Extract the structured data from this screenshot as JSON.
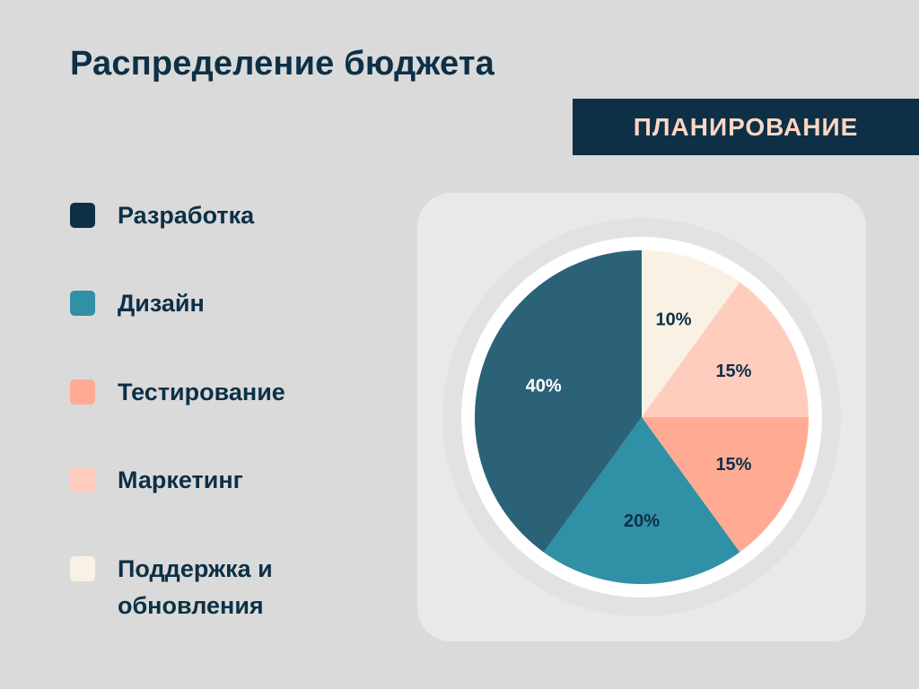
{
  "title": "Распределение бюджета",
  "badge": "ПЛАНИРОВАНИЕ",
  "chart_data": {
    "type": "pie",
    "title": "Распределение бюджета",
    "categories": [
      "Разработка",
      "Дизайн",
      "Тестирование",
      "Маркетинг",
      "Поддержка и обновления"
    ],
    "values": [
      40,
      20,
      15,
      15,
      10
    ],
    "data_labels": [
      "40%",
      "20%",
      "15%",
      "15%",
      "10%"
    ],
    "colors": [
      "#2b6278",
      "#3090a5",
      "#ffab93",
      "#ffcdbe",
      "#f9f1e3"
    ],
    "label_colors": [
      "#ffffff",
      "#0d3046",
      "#0d3046",
      "#0d3046",
      "#0d3046"
    ],
    "legend": {
      "position": "left",
      "items": [
        {
          "label": "Разработка",
          "color": "#0d3046"
        },
        {
          "label": "Дизайн",
          "color": "#3090a5"
        },
        {
          "label": "Тестирование",
          "color": "#ffab93"
        },
        {
          "label": "Маркетинг",
          "color": "#ffcdbe"
        },
        {
          "label": "Поддержка и обновления",
          "color": "#f9f1e3"
        }
      ]
    }
  }
}
